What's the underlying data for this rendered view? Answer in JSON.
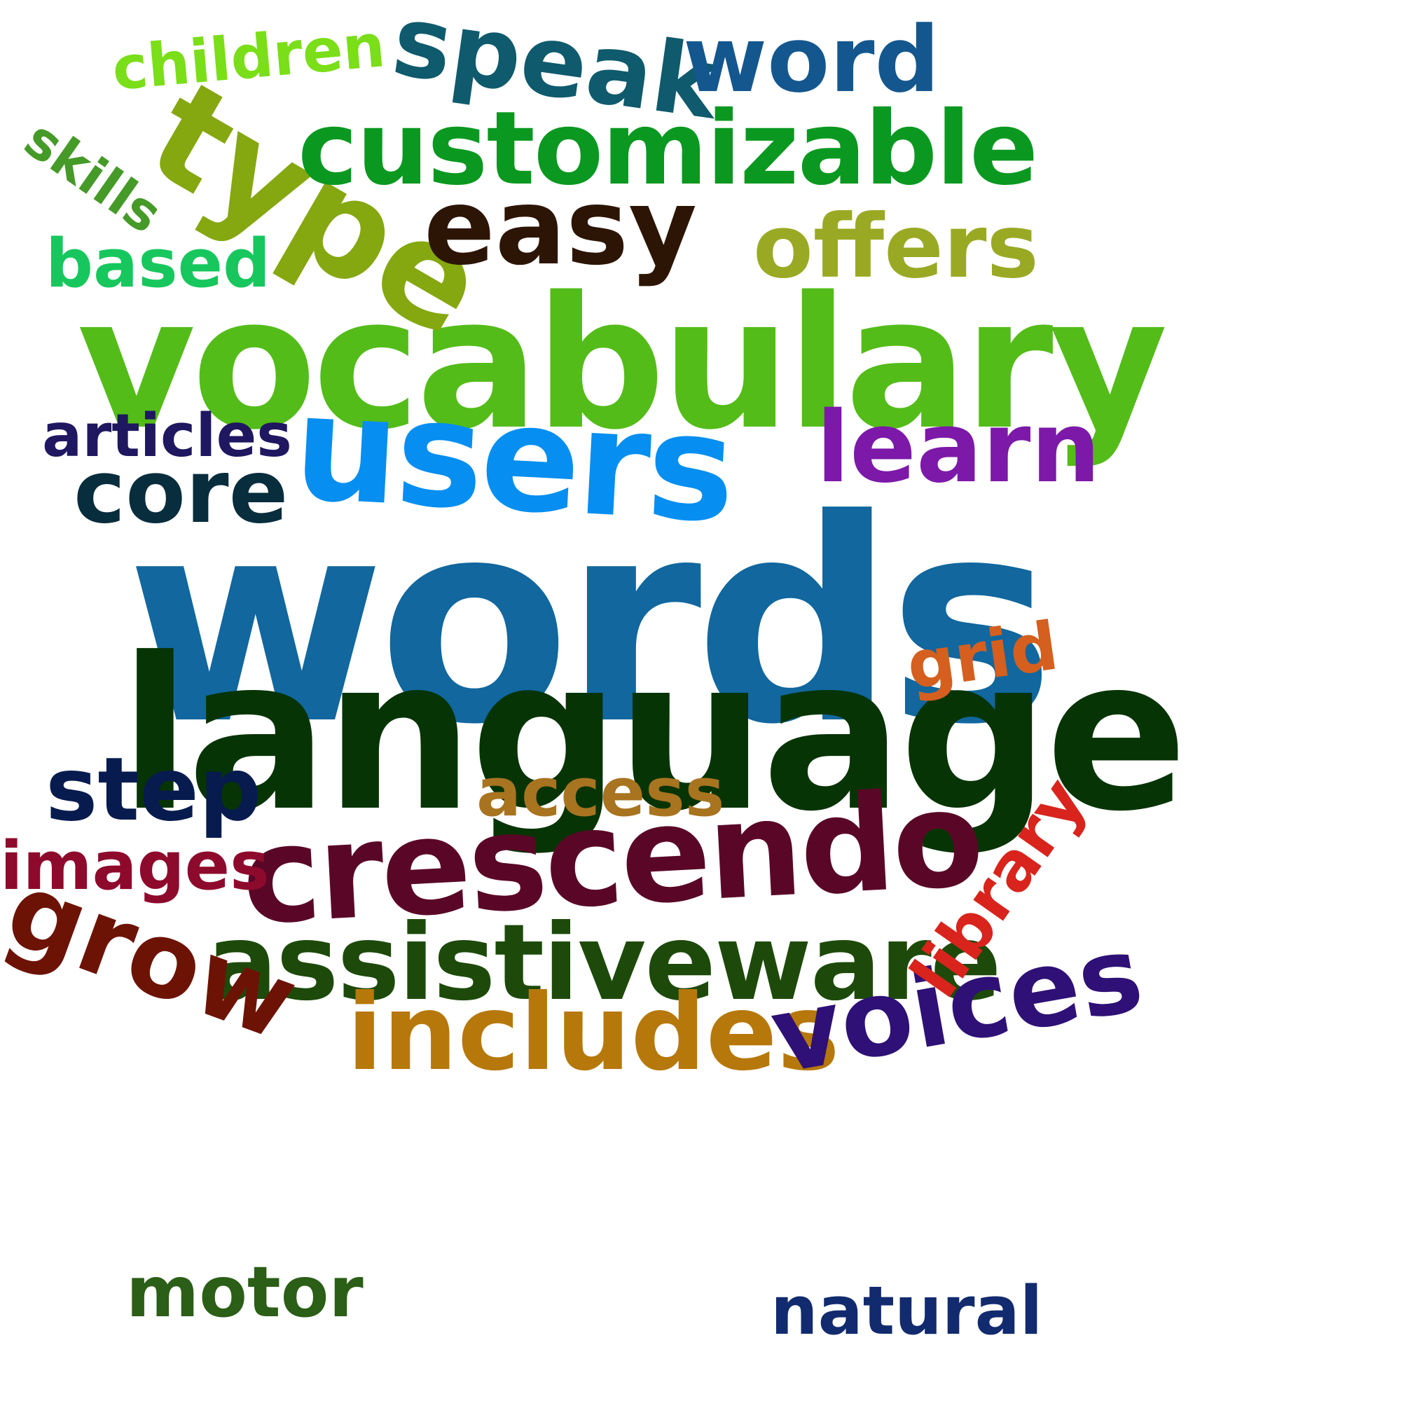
{
  "word_cloud": {
    "background": "#ffffff",
    "words": {
      "words": {
        "text": "words",
        "color": "#11679e"
      },
      "language": {
        "text": "language",
        "color": "#073405"
      },
      "vocabulary": {
        "text": "vocabulary",
        "color": "#53bc19"
      },
      "users": {
        "text": "users",
        "color": "#068ef0"
      },
      "crescendo": {
        "text": "crescendo",
        "color": "#5a0727"
      },
      "type": {
        "text": "type",
        "color": "#85a710"
      },
      "customizable": {
        "text": "customizable",
        "color": "#0a9820"
      },
      "easy": {
        "text": "easy",
        "color": "#2d1505"
      },
      "speak": {
        "text": "speak",
        "color": "#0f5a6d"
      },
      "word": {
        "text": "word",
        "color": "#14578e"
      },
      "offers": {
        "text": "offers",
        "color": "#9aa924"
      },
      "learn": {
        "text": "learn",
        "color": "#7c19a8"
      },
      "assistiveware": {
        "text": "assistiveware",
        "color": "#1d4a0a"
      },
      "includes": {
        "text": "includes",
        "color": "#b6780b"
      },
      "voices": {
        "text": "voices",
        "color": "#2f1076"
      },
      "step": {
        "text": "step",
        "color": "#071b4e"
      },
      "core": {
        "text": "core",
        "color": "#082d3d"
      },
      "articles": {
        "text": "articles",
        "color": "#1f1760"
      },
      "based": {
        "text": "based",
        "color": "#17c75d"
      },
      "children": {
        "text": "children",
        "color": "#7ade18"
      },
      "skills": {
        "text": "skills",
        "color": "#459a28"
      },
      "grid": {
        "text": "grid",
        "color": "#d45f1e"
      },
      "access": {
        "text": "access",
        "color": "#a87420"
      },
      "images": {
        "text": "images",
        "color": "#8e0a2c"
      },
      "grow": {
        "text": "grow",
        "color": "#6d1306"
      },
      "library": {
        "text": "library",
        "color": "#d8241c"
      },
      "motor": {
        "text": "motor",
        "color": "#2b5e16"
      },
      "natural": {
        "text": "natural",
        "color": "#122a6e"
      }
    }
  }
}
